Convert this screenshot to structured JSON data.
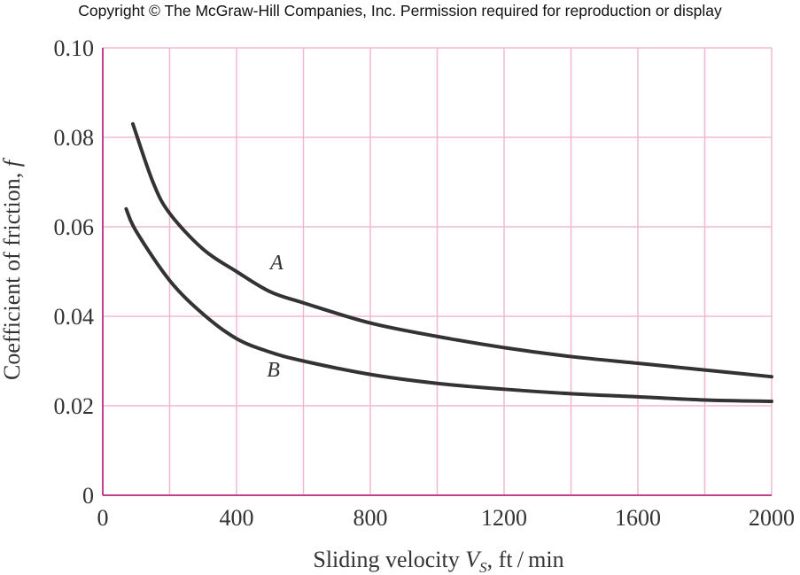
{
  "copyright": "Copyright © The McGraw-Hill Companies, Inc. Permission required for reproduction or display",
  "chart_data": {
    "type": "line",
    "title": "",
    "xlabel_prefix": "Sliding velocity ",
    "xlabel_var": "V",
    "xlabel_sub": "S",
    "xlabel_suffix": ", ft / min",
    "ylabel_prefix": "Coefficient of friction, ",
    "ylabel_var": "f",
    "xlim": [
      0,
      2000
    ],
    "ylim": [
      0,
      0.1
    ],
    "xticks": [
      0,
      400,
      800,
      1200,
      1600,
      2000
    ],
    "xtick_labels": [
      "0",
      "400",
      "800",
      "1200",
      "1600",
      "2000"
    ],
    "yticks": [
      0,
      0.02,
      0.04,
      0.06,
      0.08,
      0.1
    ],
    "ytick_labels": [
      "0",
      "0.02",
      "0.04",
      "0.06",
      "0.08",
      "0.10"
    ],
    "xgrid_step": 200,
    "ygrid_step": 0.02,
    "grid": true,
    "series": [
      {
        "name": "A",
        "x": [
          90,
          150,
          200,
          300,
          400,
          500,
          600,
          800,
          1000,
          1200,
          1400,
          1600,
          1800,
          2000
        ],
        "y": [
          0.083,
          0.07,
          0.063,
          0.055,
          0.05,
          0.0455,
          0.043,
          0.0385,
          0.0355,
          0.033,
          0.031,
          0.0295,
          0.028,
          0.0265
        ]
      },
      {
        "name": "B",
        "x": [
          70,
          100,
          200,
          300,
          400,
          500,
          600,
          800,
          1000,
          1200,
          1400,
          1600,
          1800,
          2000
        ],
        "y": [
          0.064,
          0.059,
          0.048,
          0.0405,
          0.035,
          0.032,
          0.03,
          0.027,
          0.025,
          0.0237,
          0.0227,
          0.022,
          0.0213,
          0.021
        ]
      }
    ],
    "labels": [
      {
        "text": "A",
        "x": 520,
        "y": 0.0505
      },
      {
        "text": "B",
        "x": 510,
        "y": 0.0265
      }
    ]
  }
}
